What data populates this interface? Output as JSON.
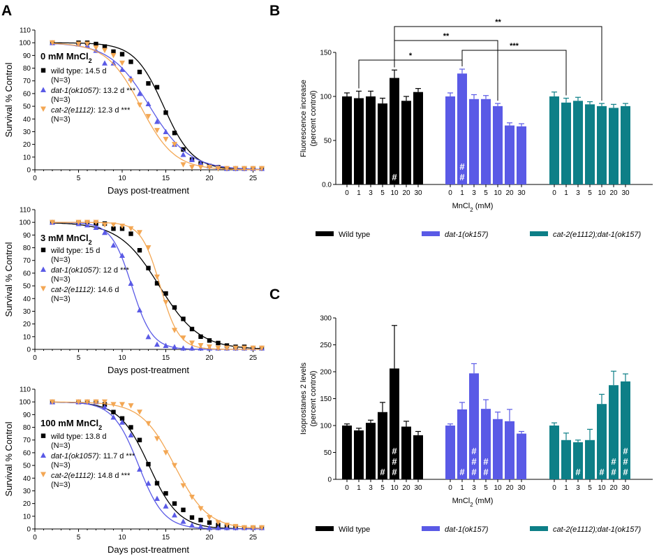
{
  "colors": {
    "wt": "#000000",
    "dat": "#5a5ae6",
    "cat": "#f3a754",
    "dbl": "#0d7f87"
  },
  "panel_a": {
    "label": "A",
    "xlabel": "Days post-treatment",
    "ylabel": "Survival % Control",
    "xlim": [
      0,
      26
    ],
    "ylim": [
      0,
      110
    ],
    "xticks": [
      "0",
      "5",
      "10",
      "15",
      "20",
      "25"
    ],
    "yticks": [
      "0",
      "10",
      "20",
      "30",
      "40",
      "50",
      "60",
      "70",
      "80",
      "90",
      "100",
      "110"
    ]
  },
  "panel_b": {
    "label": "B",
    "ylabel": [
      "Fluorescence increase",
      "(percent control)"
    ],
    "xlabel_main": "MnCl",
    "xlabel_sub": "2",
    "xlabel_unit": " (mM)",
    "yticks": [
      "0.0",
      "50",
      "100",
      "150"
    ],
    "brackets": [
      {
        "from": [
          0,
          4
        ],
        "to": [
          1,
          1
        ],
        "stars": "*"
      },
      {
        "from": [
          1,
          1
        ],
        "to": [
          2,
          1
        ],
        "stars": "***"
      },
      {
        "from": [
          0,
          4
        ],
        "to": [
          1,
          4
        ],
        "stars": "**"
      },
      {
        "from": [
          0,
          4
        ],
        "to": [
          2,
          4
        ],
        "stars": "**"
      }
    ]
  },
  "panel_c": {
    "label": "C",
    "ylabel": [
      "Isoprostanes 2 levels",
      "(percent control)"
    ],
    "xlabel_main": "MnCl",
    "xlabel_sub": "2",
    "xlabel_unit": " (mM)",
    "yticks": [
      "0",
      "50",
      "100",
      "150",
      "200",
      "250",
      "300"
    ]
  },
  "bar_legend": [
    "Wild type",
    "dat-1(ok157)",
    "cat-2(e1112);dat-1(ok157)"
  ],
  "hash_symbol": "#",
  "chart_data": [
    {
      "type": "scatter",
      "title": "0 mM MnCl2",
      "title_main": "0 mM MnCl",
      "title_sub": "2",
      "xlabel": "Days post-treatment",
      "ylabel": "Survival % Control",
      "xlim": [
        0,
        26
      ],
      "ylim": [
        0,
        110
      ],
      "series": [
        {
          "name": "wild type",
          "legend": [
            "wild type: 14.5 d",
            "(N=3)"
          ],
          "marker": "square",
          "color": "#000000",
          "x": [
            2,
            5,
            6,
            7,
            8,
            9,
            10,
            11,
            12,
            13,
            14,
            15,
            16,
            17,
            18,
            19,
            20,
            21,
            22,
            23,
            24,
            25,
            26
          ],
          "y": [
            100,
            100,
            100,
            99,
            97,
            93,
            91,
            85,
            77,
            68,
            65,
            45,
            29,
            16,
            8,
            5,
            3,
            2,
            1,
            1,
            1,
            1,
            1
          ]
        },
        {
          "name": "dat-1(ok1057)",
          "legend": [
            "dat-1(ok1057): 13.2 d ***",
            "(N=3)"
          ],
          "marker": "triangle-up",
          "color": "#5a5ae6",
          "x": [
            2,
            5,
            6,
            7,
            8,
            9,
            10,
            11,
            12,
            13,
            14,
            15,
            16,
            17,
            18,
            19,
            20,
            21,
            22,
            23,
            24,
            25,
            26
          ],
          "y": [
            100,
            99,
            98,
            94,
            84,
            84,
            79,
            72,
            60,
            52,
            38,
            30,
            20,
            12,
            8,
            5,
            3,
            2,
            1,
            1,
            1,
            1,
            1
          ]
        },
        {
          "name": "cat-2(e1112)",
          "legend": [
            "cat-2(e1112): 12.3 d ***",
            "(N=3)"
          ],
          "marker": "triangle-down",
          "color": "#f3a754",
          "x": [
            2,
            5,
            6,
            7,
            8,
            9,
            10,
            11,
            12,
            13,
            14,
            15,
            16,
            17,
            18,
            19,
            20,
            21,
            22,
            23,
            24,
            25,
            26
          ],
          "y": [
            100,
            99,
            99,
            96,
            94,
            90,
            84,
            70,
            51,
            42,
            31,
            24,
            20,
            4,
            2,
            2,
            2,
            1,
            1,
            1,
            1,
            1,
            1
          ]
        }
      ]
    },
    {
      "type": "scatter",
      "title": "3 mM MnCl2",
      "title_main": "3 mM MnCl",
      "title_sub": "2",
      "xlabel": "Days post-treatment",
      "ylabel": "Survival % Control",
      "xlim": [
        0,
        26
      ],
      "ylim": [
        0,
        110
      ],
      "series": [
        {
          "name": "wild type",
          "legend": [
            "wild type: 15 d",
            "(N=3)"
          ],
          "marker": "square",
          "color": "#000000",
          "x": [
            2,
            5,
            6,
            7,
            8,
            9,
            10,
            11,
            12,
            13,
            14,
            15,
            16,
            17,
            18,
            19,
            20,
            21,
            22,
            23,
            24,
            25,
            26
          ],
          "y": [
            100,
            100,
            100,
            99,
            99,
            95,
            95,
            91,
            78,
            64,
            52,
            44,
            33,
            24,
            16,
            10,
            7,
            5,
            3,
            2,
            2,
            1,
            1
          ]
        },
        {
          "name": "dat-1(ok1057)",
          "legend": [
            "dat-1(ok1057): 12 d ***",
            "(N=3)"
          ],
          "marker": "triangle-up",
          "color": "#5a5ae6",
          "x": [
            2,
            5,
            6,
            7,
            8,
            9,
            10,
            11,
            12,
            13,
            14,
            15,
            16,
            17,
            18,
            19,
            20,
            21,
            22,
            23,
            24,
            25,
            26
          ],
          "y": [
            100,
            99,
            98,
            96,
            92,
            82,
            74,
            52,
            31,
            10,
            4,
            3,
            2,
            1,
            1,
            1,
            1,
            1,
            1,
            1,
            1,
            1,
            1
          ]
        },
        {
          "name": "cat-2(e1112)",
          "legend": [
            "cat-2(e1112): 14.6 d",
            "(N=3)"
          ],
          "marker": "triangle-down",
          "color": "#f3a754",
          "x": [
            2,
            5,
            6,
            7,
            8,
            9,
            10,
            11,
            12,
            13,
            14,
            15,
            16,
            17,
            18,
            19,
            20,
            21,
            22,
            23,
            24,
            25,
            26
          ],
          "y": [
            100,
            100,
            100,
            100,
            98,
            98,
            97,
            95,
            92,
            80,
            57,
            37,
            15,
            9,
            5,
            3,
            2,
            1,
            1,
            1,
            1,
            1,
            1
          ]
        }
      ]
    },
    {
      "type": "scatter",
      "title": "100 mM MnCl2",
      "title_main": "100 mM MnCl",
      "title_sub": "2",
      "xlabel": "Days post-treatment",
      "ylabel": "Survival % Control",
      "xlim": [
        0,
        26
      ],
      "ylim": [
        0,
        110
      ],
      "series": [
        {
          "name": "wild type",
          "legend": [
            "wild type: 13.8 d",
            "(N=3)"
          ],
          "marker": "square",
          "color": "#000000",
          "x": [
            2,
            5,
            6,
            7,
            8,
            9,
            10,
            11,
            12,
            13,
            14,
            15,
            16,
            17,
            18,
            19,
            20,
            21,
            22,
            23,
            24,
            25,
            26
          ],
          "y": [
            100,
            100,
            100,
            100,
            98,
            92,
            87,
            80,
            70,
            51,
            36,
            28,
            20,
            15,
            9,
            7,
            5,
            3,
            2,
            2,
            1,
            1,
            1
          ]
        },
        {
          "name": "dat-1(ok1057)",
          "legend": [
            "dat-1(ok1057): 11.7 d ***",
            "(N=3)"
          ],
          "marker": "triangle-up",
          "color": "#5a5ae6",
          "x": [
            2,
            5,
            6,
            7,
            8,
            9,
            10,
            11,
            12,
            13,
            14,
            15,
            16,
            17,
            18,
            19,
            20,
            21,
            22,
            23,
            24,
            25,
            26
          ],
          "y": [
            100,
            100,
            100,
            100,
            96,
            88,
            84,
            74,
            47,
            36,
            24,
            18,
            11,
            6,
            3,
            2,
            1,
            1,
            1,
            1,
            1,
            1,
            1
          ]
        },
        {
          "name": "cat-2(e1112)",
          "legend": [
            "cat-2(e1112): 14.8 d ***",
            "(N=3)"
          ],
          "marker": "triangle-down",
          "color": "#f3a754",
          "x": [
            2,
            5,
            6,
            7,
            8,
            9,
            10,
            11,
            12,
            13,
            14,
            15,
            16,
            17,
            18,
            19,
            20,
            21,
            22,
            23,
            24,
            25,
            26
          ],
          "y": [
            100,
            100,
            100,
            100,
            100,
            98,
            98,
            97,
            92,
            83,
            71,
            60,
            50,
            34,
            25,
            16,
            9,
            5,
            3,
            2,
            1,
            1,
            1
          ]
        }
      ]
    },
    {
      "type": "bar",
      "panel": "B",
      "ylabel": "Fluorescence increase (percent control)",
      "xlabel": "MnCl2 (mM)",
      "ylim": [
        0,
        150
      ],
      "categories": [
        "0",
        "1",
        "3",
        "5",
        "10",
        "20",
        "30"
      ],
      "series": [
        {
          "name": "Wild type",
          "color": "#000000",
          "values": [
            100,
            98,
            100,
            92,
            121,
            95,
            105
          ],
          "errors": [
            4,
            8,
            6,
            6,
            9,
            5,
            4
          ],
          "hash": [
            0,
            0,
            0,
            0,
            1,
            0,
            0
          ]
        },
        {
          "name": "dat-1(ok157)",
          "color": "#5a5ae6",
          "values": [
            100,
            126,
            97,
            97,
            89,
            67,
            66
          ],
          "errors": [
            4,
            5,
            5,
            4,
            3,
            3,
            3
          ],
          "hash": [
            0,
            2,
            0,
            0,
            0,
            0,
            0
          ]
        },
        {
          "name": "cat-2(e1112);dat-1(ok157)",
          "color": "#0d7f87",
          "values": [
            100,
            93,
            95,
            91,
            89,
            87,
            89
          ],
          "errors": [
            5,
            5,
            4,
            3,
            3,
            4,
            3
          ],
          "hash": [
            0,
            0,
            0,
            0,
            0,
            0,
            0
          ]
        }
      ]
    },
    {
      "type": "bar",
      "panel": "C",
      "ylabel": "Isoprostanes 2 levels (percent control)",
      "xlabel": "MnCl2 (mM)",
      "ylim": [
        0,
        300
      ],
      "categories": [
        "0",
        "1",
        "3",
        "5",
        "10",
        "20",
        "30"
      ],
      "series": [
        {
          "name": "Wild type",
          "color": "#000000",
          "values": [
            100,
            91,
            105,
            125,
            206,
            98,
            82
          ],
          "errors": [
            3,
            4,
            5,
            18,
            80,
            10,
            7
          ],
          "hash": [
            0,
            0,
            0,
            1,
            3,
            0,
            0
          ]
        },
        {
          "name": "dat-1(ok157)",
          "color": "#5a5ae6",
          "values": [
            100,
            130,
            197,
            131,
            112,
            108,
            85
          ],
          "errors": [
            3,
            13,
            18,
            17,
            13,
            22,
            4
          ],
          "hash": [
            0,
            1,
            3,
            2,
            0,
            0,
            0
          ]
        },
        {
          "name": "cat-2(e1112);dat-1(ok157)",
          "color": "#0d7f87",
          "values": [
            100,
            73,
            69,
            73,
            140,
            175,
            182
          ],
          "errors": [
            5,
            13,
            4,
            20,
            18,
            26,
            14
          ],
          "hash": [
            0,
            0,
            1,
            0,
            1,
            2,
            3
          ]
        }
      ]
    }
  ]
}
